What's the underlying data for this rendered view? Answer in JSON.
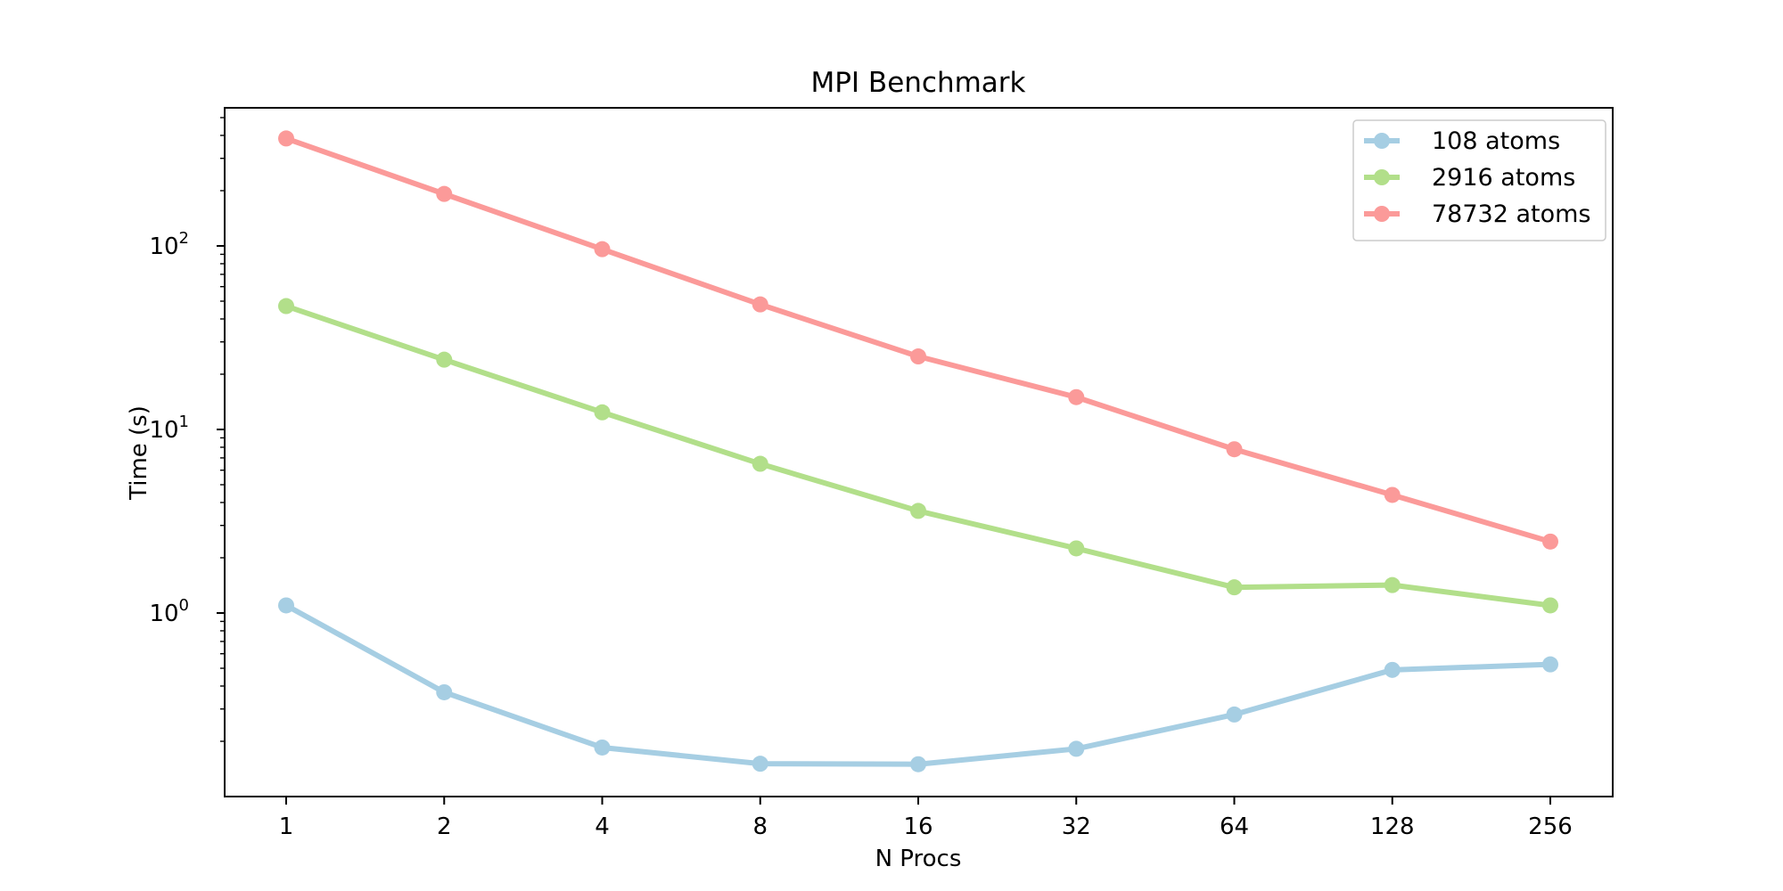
{
  "chart_data": {
    "type": "line",
    "title": "MPI Benchmark",
    "xlabel": "N Procs",
    "ylabel": "Time (s)",
    "x_scale": "log2",
    "y_scale": "log10",
    "categories": [
      "1",
      "2",
      "4",
      "8",
      "16",
      "32",
      "64",
      "128",
      "256"
    ],
    "x": [
      1,
      2,
      4,
      8,
      16,
      32,
      64,
      128,
      256
    ],
    "ylim": [
      0.1,
      600
    ],
    "y_ticks": [
      {
        "value": 1,
        "base": "10",
        "exp": "0"
      },
      {
        "value": 10,
        "base": "10",
        "exp": "1"
      },
      {
        "value": 100,
        "base": "10",
        "exp": "2"
      }
    ],
    "grid": false,
    "legend_position": "top-right",
    "series": [
      {
        "name": "108 atoms",
        "color": "#a6cee3",
        "values": [
          1.1,
          0.37,
          0.185,
          0.151,
          0.15,
          0.182,
          0.28,
          0.49,
          0.525
        ]
      },
      {
        "name": "2916 atoms",
        "color": "#b2df8a",
        "values": [
          47,
          24,
          12.4,
          6.5,
          3.6,
          2.25,
          1.38,
          1.42,
          1.1
        ]
      },
      {
        "name": "78732 atoms",
        "color": "#fb9a99",
        "values": [
          385,
          192,
          96,
          48,
          25,
          15,
          7.8,
          4.4,
          2.45
        ]
      }
    ]
  }
}
